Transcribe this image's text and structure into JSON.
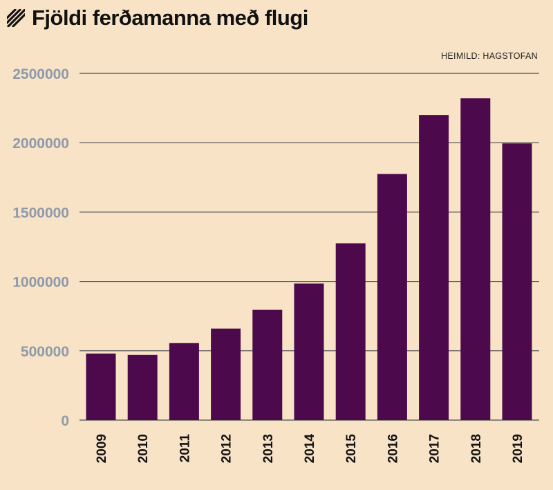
{
  "header": {
    "title": "Fjöldi ferðamanna með flugi",
    "source": "HEIMILD: HAGSTOFAN",
    "icon": "hatch-icon"
  },
  "colors": {
    "background": "#f8e3c7",
    "bar": "#4c0a4d",
    "gridline": "#4a4a4a",
    "ytick": "#8e9aaa",
    "text": "#111111"
  },
  "chart_data": {
    "type": "bar",
    "title": "Fjöldi ferðamanna með flugi",
    "xlabel": "",
    "ylabel": "",
    "categories": [
      "2009",
      "2010",
      "2011",
      "2012",
      "2013",
      "2014",
      "2015",
      "2016",
      "2017",
      "2018",
      "2019"
    ],
    "values": [
      480000,
      470000,
      555000,
      660000,
      795000,
      985000,
      1275000,
      1775000,
      2200000,
      2320000,
      1995000
    ],
    "ylim": [
      0,
      2500000
    ],
    "yticks": [
      "0",
      "500000",
      "1000000",
      "1500000",
      "2000000",
      "2500000"
    ],
    "grid": true,
    "legend": "none",
    "x_tick_rotation": "vertical"
  }
}
